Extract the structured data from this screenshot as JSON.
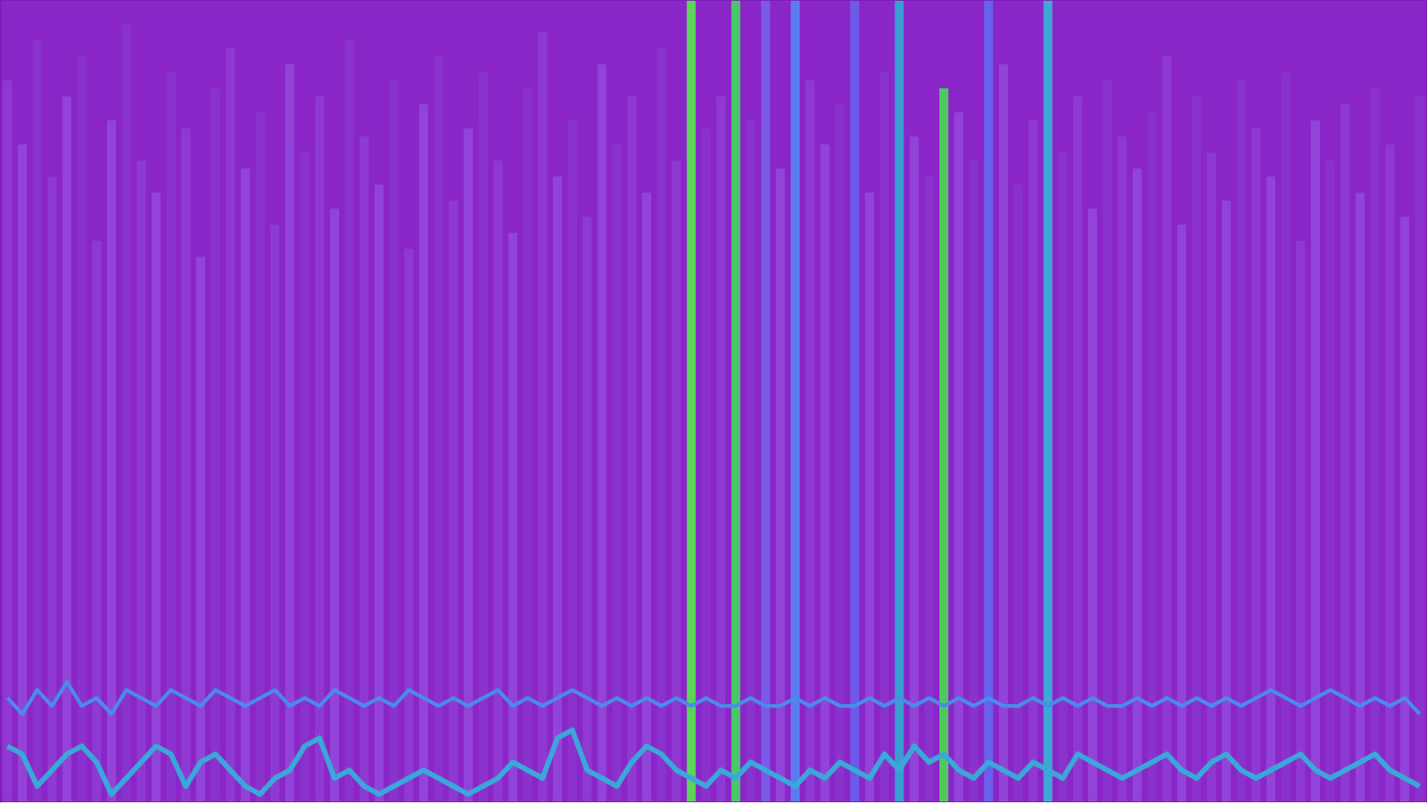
{
  "chart_data": {
    "type": "bar",
    "categories": [
      null,
      null,
      null,
      null,
      null,
      null,
      null,
      null,
      null,
      null,
      null,
      null,
      null,
      null,
      null,
      null,
      null,
      null,
      null,
      null,
      null,
      null,
      null,
      null,
      null,
      null,
      null,
      null,
      null,
      null,
      null,
      null,
      null,
      null,
      null,
      null,
      null,
      null,
      null,
      null,
      null,
      null,
      null,
      null,
      null,
      null,
      null,
      null,
      null,
      null,
      null,
      null,
      null,
      null,
      null,
      null,
      null,
      null,
      null,
      null,
      null,
      null,
      null,
      null,
      null,
      null,
      null,
      null,
      null,
      null,
      null,
      null,
      null,
      null,
      null,
      null,
      null,
      null,
      null,
      null,
      null,
      null,
      null,
      null,
      null,
      null,
      null,
      null,
      null,
      null,
      null,
      null,
      null,
      null,
      null,
      null
    ],
    "series": [
      {
        "type": "bar",
        "values": [
          90,
          82,
          95,
          78,
          88,
          93,
          70,
          85,
          97,
          80,
          76,
          91,
          84,
          68,
          89,
          94,
          79,
          86,
          72,
          92,
          81,
          88,
          74,
          95,
          83,
          77,
          90,
          69,
          87,
          93,
          75,
          84,
          91,
          80,
          71,
          89,
          96,
          78,
          85,
          73,
          92,
          82,
          88,
          76,
          94,
          80,
          100,
          84,
          88,
          100,
          85,
          100,
          79,
          100,
          90,
          82,
          87,
          100,
          76,
          91,
          100,
          83,
          78,
          89,
          86,
          80,
          100,
          92,
          77,
          85,
          100,
          81,
          88,
          74,
          90,
          83,
          79,
          86,
          93,
          72,
          88,
          81,
          75,
          90,
          84,
          78,
          91,
          70,
          85,
          80,
          87,
          76,
          89,
          82,
          73,
          88
        ],
        "colors": [
          "#8e3ad2",
          "#9244d8",
          "#8a32cc",
          "#8e3ad2",
          "#9244d8",
          "#8a32cc",
          "#8e3ad2",
          "#9244d8",
          "#8a32cc",
          "#8e3ad2",
          "#9244d8",
          "#8a32cc",
          "#8e3ad2",
          "#9244d8",
          "#8a32cc",
          "#8e3ad2",
          "#9244d8",
          "#8a32cc",
          "#8e3ad2",
          "#9244d8",
          "#8a32cc",
          "#8e3ad2",
          "#9244d8",
          "#8a32cc",
          "#8e3ad2",
          "#9244d8",
          "#8a32cc",
          "#8e3ad2",
          "#9244d8",
          "#8a32cc",
          "#8e3ad2",
          "#9244d8",
          "#8a32cc",
          "#8e3ad2",
          "#9244d8",
          "#8a32cc",
          "#8e3ad2",
          "#9244d8",
          "#8a32cc",
          "#8e3ad2",
          "#9244d8",
          "#8a32cc",
          "#8e3ad2",
          "#9244d8",
          "#8a32cc",
          "#8e3ad2",
          "#5ad45a",
          "#8a32cc",
          "#8e3ad2",
          "#48c86c",
          "#8a32cc",
          "#7a5ae6",
          "#9244d8",
          "#5a7cf0",
          "#8e3ad2",
          "#9244d8",
          "#8a32cc",
          "#6c5ae8",
          "#9244d8",
          "#8a32cc",
          "#3a9ed2",
          "#9244d8",
          "#8a32cc",
          "#50c860",
          "#9244d8",
          "#8a32cc",
          "#6662ee",
          "#9244d8",
          "#8a32cc",
          "#8e3ad2",
          "#40a6d6",
          "#8a32cc",
          "#8e3ad2",
          "#9244d8",
          "#8a32cc",
          "#8e3ad2",
          "#9244d8",
          "#8a32cc",
          "#8e3ad2",
          "#9244d8",
          "#8a32cc",
          "#8e3ad2",
          "#9244d8",
          "#8a32cc",
          "#8e3ad2",
          "#9244d8",
          "#8a32cc",
          "#8e3ad2",
          "#9244d8",
          "#8a32cc",
          "#8e3ad2",
          "#9244d8",
          "#8a32cc",
          "#8e3ad2",
          "#9244d8",
          "#8a32cc"
        ]
      },
      {
        "type": "line",
        "color": "#4a8ce8",
        "values": [
          13,
          11,
          14,
          12,
          15,
          12,
          13,
          11,
          14,
          13,
          12,
          14,
          13,
          12,
          14,
          13,
          12,
          13,
          14,
          12,
          13,
          12,
          14,
          13,
          12,
          13,
          12,
          14,
          13,
          12,
          13,
          12,
          13,
          14,
          12,
          13,
          12,
          13,
          14,
          13,
          12,
          13,
          12,
          13,
          12,
          13,
          12,
          13,
          12,
          12,
          13,
          12,
          12,
          13,
          12,
          13,
          12,
          12,
          13,
          12,
          13,
          12,
          13,
          12,
          13,
          12,
          13,
          12,
          12,
          13,
          12,
          13,
          12,
          13,
          12,
          12,
          13,
          12,
          13,
          12,
          13,
          12,
          13,
          12,
          13,
          14,
          13,
          12,
          13,
          14,
          13,
          12,
          13,
          12,
          13,
          11
        ]
      },
      {
        "type": "line",
        "color": "#3aa8d8",
        "values": [
          7,
          6,
          2,
          4,
          6,
          7,
          5,
          1,
          3,
          5,
          7,
          6,
          2,
          5,
          6,
          4,
          2,
          1,
          3,
          4,
          7,
          8,
          3,
          4,
          2,
          1,
          2,
          3,
          4,
          3,
          2,
          1,
          2,
          3,
          5,
          4,
          3,
          8,
          9,
          4,
          3,
          2,
          5,
          7,
          6,
          4,
          3,
          2,
          4,
          3,
          5,
          4,
          3,
          2,
          4,
          3,
          5,
          4,
          3,
          6,
          4,
          7,
          5,
          6,
          4,
          3,
          5,
          4,
          3,
          5,
          4,
          3,
          6,
          5,
          4,
          3,
          4,
          5,
          6,
          4,
          3,
          5,
          6,
          4,
          3,
          4,
          5,
          6,
          4,
          3,
          4,
          5,
          6,
          4,
          3,
          2
        ]
      }
    ],
    "ylim": [
      0,
      100
    ],
    "yticks": [],
    "grid": false,
    "tick_labels": false
  }
}
